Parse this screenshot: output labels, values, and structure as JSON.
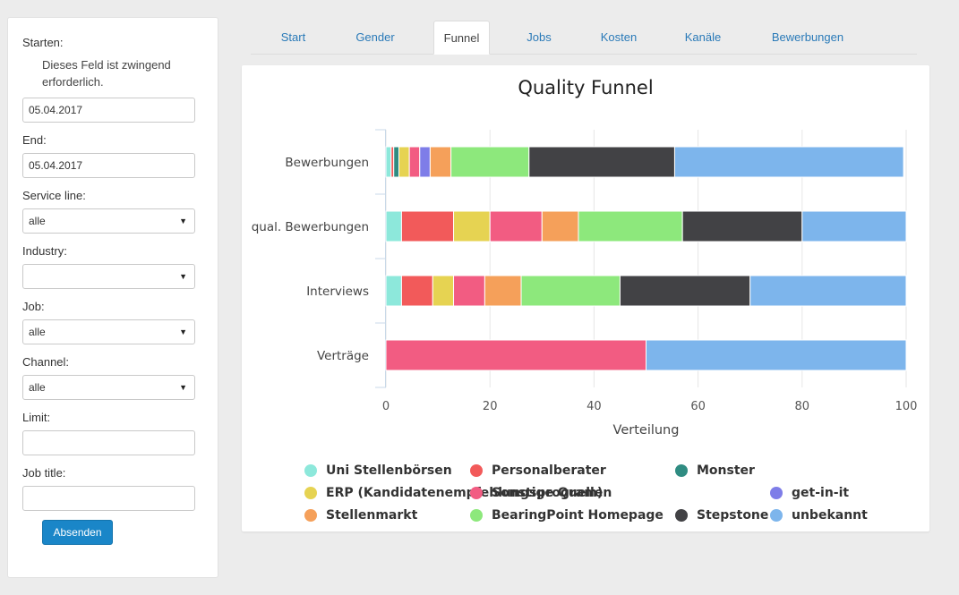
{
  "sidebar": {
    "start_label": "Starten:",
    "required_msg": "Dieses Feld ist zwingend erforderlich.",
    "start_value": "05.04.2017",
    "end_label": "End:",
    "end_value": "05.04.2017",
    "service_line_label": "Service line:",
    "service_line_value": "alle",
    "industry_label": "Industry:",
    "industry_value": "",
    "job_label": "Job:",
    "job_value": "alle",
    "channel_label": "Channel:",
    "channel_value": "alle",
    "limit_label": "Limit:",
    "limit_value": "",
    "job_title_label": "Job title:",
    "job_title_value": "",
    "submit_label": "Absenden"
  },
  "tabs": [
    "Start",
    "Gender",
    "Funnel",
    "Jobs",
    "Kosten",
    "Kanäle",
    "Bewerbungen"
  ],
  "active_tab": "Funnel",
  "chart_data": {
    "type": "bar",
    "orientation": "horizontal",
    "stacked": true,
    "title": "Quality Funnel",
    "xlabel": "Verteilung",
    "ylabel": "",
    "xlim": [
      0,
      100
    ],
    "xticks": [
      "0",
      "20",
      "40",
      "60",
      "80",
      "100"
    ],
    "grid": true,
    "legend_position": "bottom",
    "categories": [
      "Bewerbungen",
      "qual. Bewerbungen",
      "Interviews",
      "Verträge"
    ],
    "series": [
      {
        "name": "Uni Stellenbörsen",
        "color": "#8de8db",
        "values": [
          1,
          3,
          3,
          0
        ]
      },
      {
        "name": "Personalberater",
        "color": "#f25a5a",
        "values": [
          0.5,
          10,
          6,
          0
        ]
      },
      {
        "name": "Monster",
        "color": "#2f8c82",
        "values": [
          1,
          0,
          0,
          0
        ]
      },
      {
        "name": "ERP (Kandidatenempfehlungsprogram)",
        "color": "#e6d352",
        "values": [
          2,
          7,
          4,
          0
        ]
      },
      {
        "name": "Sonstige Quellen",
        "color": "#f25c82",
        "values": [
          2,
          10,
          6,
          50
        ]
      },
      {
        "name": "get-in-it",
        "color": "#7e7de8",
        "values": [
          2,
          0,
          0,
          0
        ]
      },
      {
        "name": "Stellenmarkt",
        "color": "#f5a05a",
        "values": [
          4,
          7,
          7,
          0
        ]
      },
      {
        "name": "BearingPoint Homepage",
        "color": "#8de87c",
        "values": [
          15,
          20,
          19,
          0
        ]
      },
      {
        "name": "Stepstone",
        "color": "#424245",
        "values": [
          28,
          23,
          25,
          0
        ]
      },
      {
        "name": "unbekannt",
        "color": "#7db5ec",
        "values": [
          44,
          20,
          30,
          50
        ]
      }
    ]
  }
}
